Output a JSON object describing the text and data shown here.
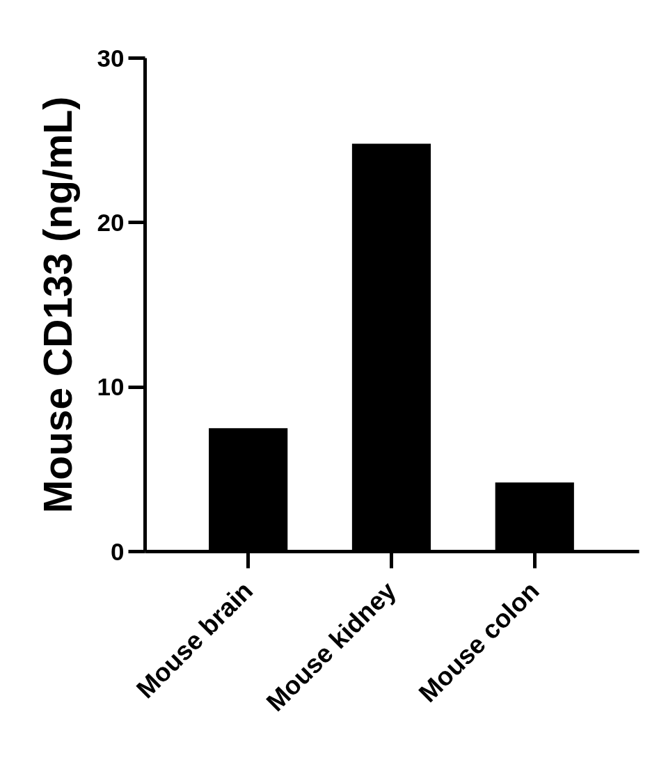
{
  "chart_data": {
    "type": "bar",
    "categories": [
      "Mouse brain",
      "Mouse kidney",
      "Mouse colon"
    ],
    "values": [
      7.5,
      24.8,
      4.2
    ],
    "color": "#000000",
    "ylabel": "Mouse CD133 (ng/mL)",
    "ylim": [
      0,
      30
    ],
    "yticks": [
      0,
      10,
      20,
      30
    ],
    "grid": false
  }
}
